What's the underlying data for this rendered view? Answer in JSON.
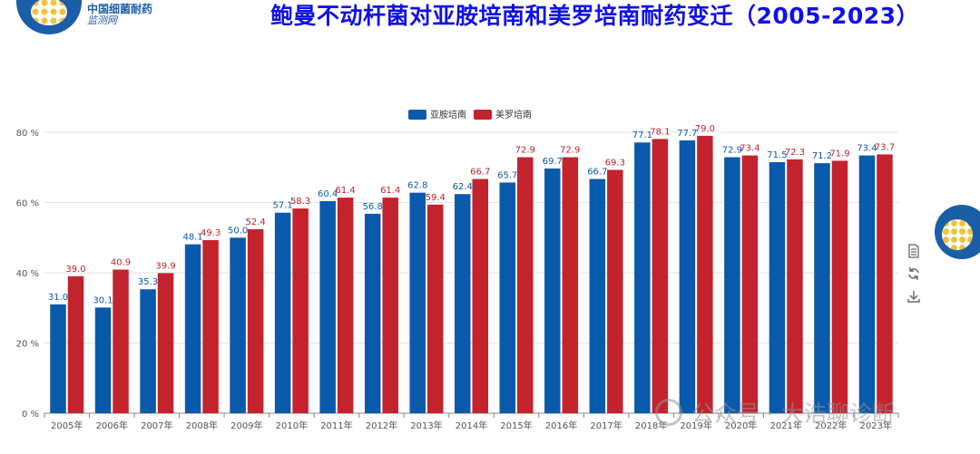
{
  "header": {
    "title": "鲍曼不动杆菌对亚胺培南和美罗培南耐药变迁（2005-2023）",
    "logo_name": "中国细菌耐药",
    "logo_sub": "监测网"
  },
  "watermark": {
    "text": "公众号 · 大浩聊诊断"
  },
  "toolbox": {
    "icons": [
      "data-view-icon",
      "restore-icon",
      "save-image-icon"
    ]
  },
  "colors": {
    "imipenem": "#0a5aab",
    "meropenem": "#c3232d",
    "title": "#1010e8"
  },
  "chart_data": {
    "type": "bar",
    "categories": [
      "2005年",
      "2006年",
      "2007年",
      "2008年",
      "2009年",
      "2010年",
      "2011年",
      "2012年",
      "2013年",
      "2014年",
      "2015年",
      "2016年",
      "2017年",
      "2018年",
      "2019年",
      "2020年",
      "2021年",
      "2022年",
      "2023年"
    ],
    "series": [
      {
        "name": "亚胺培南",
        "values": [
          31.0,
          30.1,
          35.3,
          48.1,
          50.0,
          57.1,
          60.4,
          56.8,
          62.8,
          62.4,
          65.7,
          69.7,
          66.7,
          77.1,
          77.7,
          72.9,
          71.5,
          71.2,
          73.4
        ]
      },
      {
        "name": "美罗培南",
        "values": [
          39.0,
          40.9,
          39.9,
          49.3,
          52.4,
          58.3,
          61.4,
          61.4,
          59.4,
          66.7,
          72.9,
          72.9,
          69.3,
          78.1,
          79.0,
          73.4,
          72.3,
          71.9,
          73.7
        ]
      }
    ],
    "yticks": [
      "0 %",
      "20 %",
      "40 %",
      "60 %",
      "80 %"
    ],
    "ylim": [
      0,
      80
    ],
    "legend_position": "top",
    "grid": true
  }
}
